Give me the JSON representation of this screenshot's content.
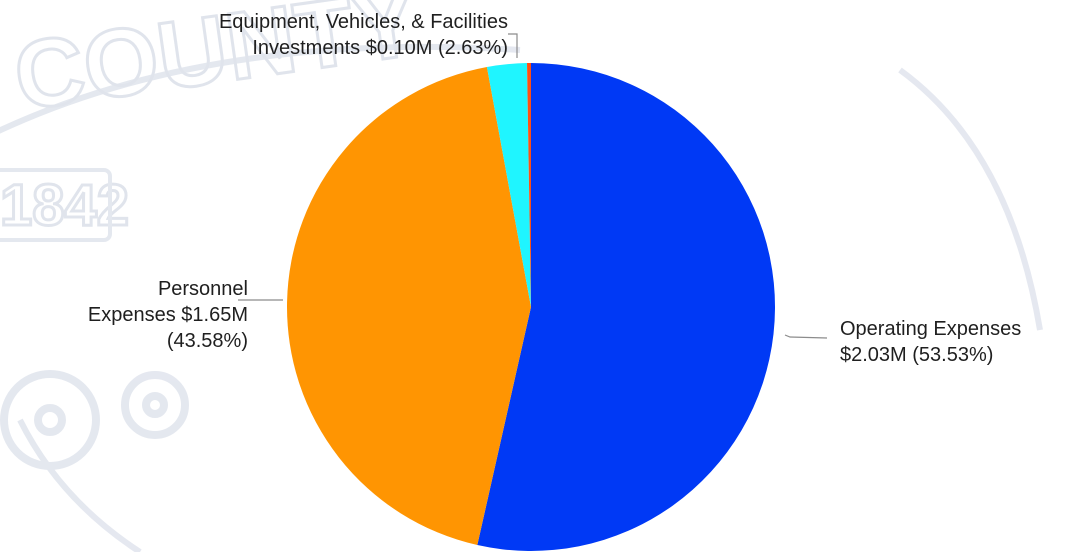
{
  "chart_data": {
    "type": "pie",
    "start_angle_deg": 0,
    "direction": "clockwise",
    "slices": [
      {
        "label_lines": [
          "Operating Expenses",
          "$2.03M (53.53%)"
        ],
        "value": 2.03,
        "percent": 53.53,
        "color": "#0039f5"
      },
      {
        "label_lines": [
          "Personnel",
          "Expenses $1.65M",
          "(43.58%)"
        ],
        "value": 1.65,
        "percent": 43.58,
        "color": "#ff9502"
      },
      {
        "label_lines": [
          "Equipment, Vehicles, & Facilities",
          "Investments $0.10M (2.63%)"
        ],
        "value": 0.1,
        "percent": 2.63,
        "color": "#1ff5ff"
      },
      {
        "label_lines": [],
        "value": 0.01,
        "percent": 0.26,
        "color": "#ff4f13"
      }
    ]
  },
  "watermark": {
    "lines": [
      "COUNTY",
      "1842"
    ],
    "icon": "seal-gear-icon",
    "color": "#dde2ea"
  }
}
